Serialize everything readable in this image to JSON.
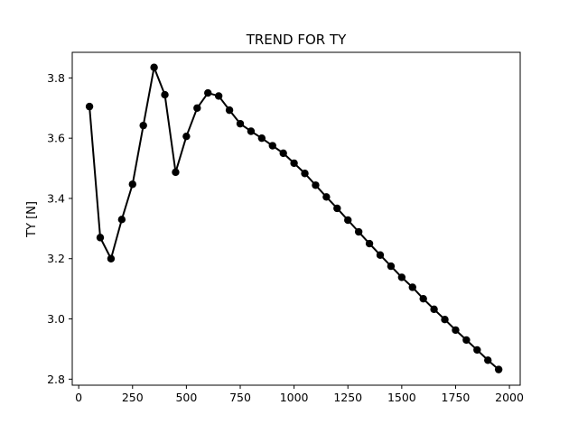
{
  "chart_data": {
    "type": "line",
    "title": "TREND FOR TY",
    "xlabel": "",
    "ylabel": "TY [N]",
    "xlim": [
      -30,
      2050
    ],
    "ylim": [
      2.78,
      3.885
    ],
    "x_ticks": [
      0,
      250,
      500,
      750,
      1000,
      1250,
      1500,
      1750,
      2000
    ],
    "x_tick_labels": [
      "0",
      "250",
      "500",
      "750",
      "1000",
      "1250",
      "1500",
      "1750",
      "2000"
    ],
    "y_ticks": [
      2.8,
      3.0,
      3.2,
      3.4,
      3.6,
      3.8
    ],
    "y_tick_labels": [
      "2.8",
      "3.0",
      "3.2",
      "3.4",
      "3.6",
      "3.8"
    ],
    "grid": false,
    "legend": "none",
    "series": [
      {
        "color": "#000000",
        "marker": "circle",
        "x": [
          50,
          100,
          150,
          200,
          250,
          300,
          350,
          400,
          450,
          500,
          550,
          600,
          650,
          700,
          750,
          800,
          850,
          900,
          950,
          1000,
          1050,
          1100,
          1150,
          1200,
          1250,
          1300,
          1350,
          1400,
          1450,
          1500,
          1550,
          1600,
          1650,
          1700,
          1750,
          1800,
          1850,
          1900,
          1950
        ],
        "y": [
          3.705,
          3.27,
          3.2,
          3.33,
          3.447,
          3.642,
          3.835,
          3.744,
          3.487,
          3.606,
          3.7,
          3.75,
          3.74,
          3.693,
          3.648,
          3.623,
          3.6,
          3.575,
          3.55,
          3.517,
          3.483,
          3.444,
          3.405,
          3.367,
          3.328,
          3.289,
          3.25,
          3.212,
          3.175,
          3.138,
          3.105,
          3.067,
          3.032,
          2.998,
          2.963,
          2.93,
          2.897,
          2.863,
          2.832
        ]
      }
    ]
  }
}
